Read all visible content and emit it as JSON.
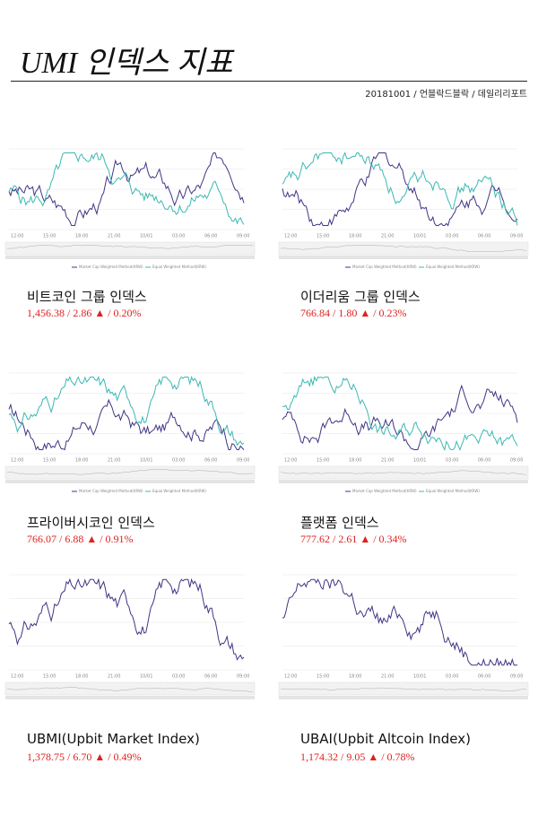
{
  "header": {
    "title": "UMI 인덱스 지표",
    "subtitle": "20181001 / 언블락드블락 / 데일리리포트"
  },
  "legend": [
    "Market Cap Weighted Method(KRW)",
    "Equal Weighted Method(KRW)"
  ],
  "x_labels": [
    "12:00",
    "15:00",
    "18:00",
    "21:00",
    "10/01",
    "03:00",
    "06:00",
    "09:00"
  ],
  "panels": [
    {
      "title": "비트코인 그룹 인덱스",
      "value": "1,456.38 / 2.86 ▲ / 0.20%"
    },
    {
      "title": "이더리움 그룹 인덱스",
      "value": "766.84 / 1.80 ▲ / 0.23%"
    },
    {
      "title": "프라이버시코인 인덱스",
      "value": "766.07 / 6.88 ▲ / 0.91%"
    },
    {
      "title": "플랫폼 인덱스",
      "value": "777.62 / 2.61 ▲ / 0.34%"
    },
    {
      "title": "UBMI(Upbit Market Index)",
      "value": "1,378.75 / 6.70 ▲ / 0.49%"
    },
    {
      "title": "UBAI(Upbit Altcoin Index)",
      "value": "1,174.32 / 9.05 ▲ / 0.78%"
    }
  ]
}
